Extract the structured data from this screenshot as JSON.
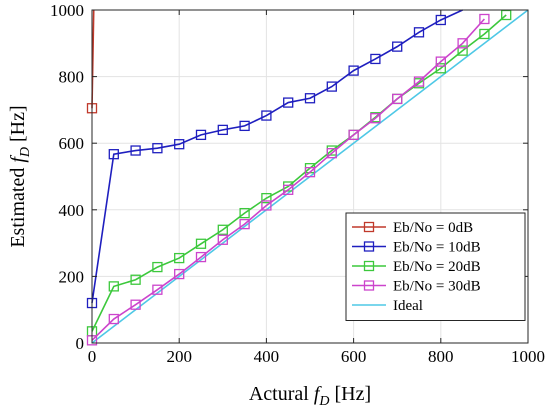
{
  "chart_data": {
    "type": "line",
    "title": "",
    "xlabel": "Actural f_D [Hz]",
    "xlabel_main": "Actural ",
    "xlabel_sym": "f",
    "xlabel_sub": "D",
    "xlabel_unit": " [Hz]",
    "ylabel": "Estimated f_D [Hz]",
    "ylabel_main": "Estimated ",
    "ylabel_sym": "f",
    "ylabel_sub": "D",
    "ylabel_unit": " [Hz]",
    "xlim": [
      0,
      1000
    ],
    "ylim": [
      0,
      1000
    ],
    "xticks": [
      0,
      200,
      400,
      600,
      800,
      1000
    ],
    "yticks": [
      0,
      200,
      400,
      600,
      800,
      1000
    ],
    "xtick_labels": [
      "0",
      "200",
      "400",
      "600",
      "800",
      "1000"
    ],
    "ytick_labels": [
      "0",
      "200",
      "400",
      "600",
      "800",
      "1000"
    ],
    "grid": true,
    "legend_position": "bottom-right",
    "series": [
      {
        "name": "Eb/No = 0dB",
        "color": "#c0392b",
        "marker": "square",
        "points": [
          [
            0,
            705
          ],
          [
            4,
            1000
          ]
        ]
      },
      {
        "name": "Eb/No = 10dB",
        "color": "#1f1fbf",
        "marker": "square",
        "points": [
          [
            0,
            120
          ],
          [
            50,
            567
          ],
          [
            100,
            578
          ],
          [
            150,
            585
          ],
          [
            200,
            597
          ],
          [
            250,
            625
          ],
          [
            300,
            640
          ],
          [
            350,
            652
          ],
          [
            400,
            683
          ],
          [
            450,
            722
          ],
          [
            500,
            735
          ],
          [
            550,
            770
          ],
          [
            600,
            818
          ],
          [
            650,
            853
          ],
          [
            700,
            890
          ],
          [
            750,
            933
          ],
          [
            800,
            970
          ],
          [
            850,
            1000
          ]
        ]
      },
      {
        "name": "Eb/No = 20dB",
        "color": "#3cc83c",
        "marker": "square",
        "points": [
          [
            0,
            35
          ],
          [
            50,
            170
          ],
          [
            100,
            190
          ],
          [
            150,
            228
          ],
          [
            200,
            255
          ],
          [
            250,
            298
          ],
          [
            300,
            340
          ],
          [
            350,
            390
          ],
          [
            400,
            435
          ],
          [
            450,
            470
          ],
          [
            500,
            525
          ],
          [
            550,
            578
          ],
          [
            600,
            625
          ],
          [
            650,
            678
          ],
          [
            700,
            733
          ],
          [
            750,
            780
          ],
          [
            800,
            825
          ],
          [
            850,
            878
          ],
          [
            900,
            928
          ],
          [
            950,
            985
          ]
        ]
      },
      {
        "name": "Eb/No = 30dB",
        "color": "#cc44cc",
        "marker": "square",
        "points": [
          [
            0,
            8
          ],
          [
            50,
            72
          ],
          [
            100,
            115
          ],
          [
            150,
            160
          ],
          [
            200,
            207
          ],
          [
            250,
            258
          ],
          [
            300,
            310
          ],
          [
            350,
            357
          ],
          [
            400,
            413
          ],
          [
            450,
            460
          ],
          [
            500,
            513
          ],
          [
            550,
            570
          ],
          [
            600,
            625
          ],
          [
            650,
            675
          ],
          [
            700,
            733
          ],
          [
            750,
            785
          ],
          [
            800,
            845
          ],
          [
            850,
            900
          ],
          [
            900,
            973
          ]
        ]
      },
      {
        "name": "Ideal",
        "color": "#4ec8e6",
        "marker": "none",
        "points": [
          [
            0,
            0
          ],
          [
            1000,
            1000
          ]
        ]
      }
    ]
  }
}
